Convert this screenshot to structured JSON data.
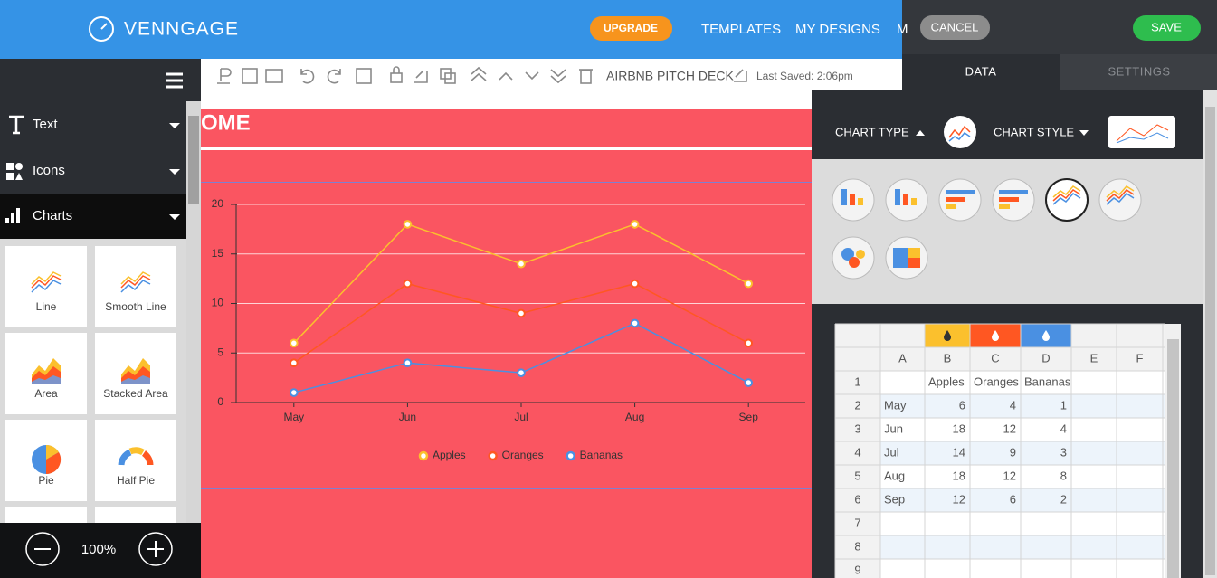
{
  "header": {
    "logo": "VENNGAGE",
    "upgrade": "UPGRADE",
    "nav": [
      "TEMPLATES",
      "MY DESIGNS",
      "M"
    ]
  },
  "panel_header": {
    "cancel": "CANCEL",
    "save": "SAVE",
    "tabs": [
      "DATA",
      "SETTINGS"
    ]
  },
  "sidebar": {
    "menu": [
      "Text",
      "Icons",
      "Charts"
    ],
    "chart_types": [
      "Line",
      "Smooth Line",
      "Area",
      "Stacked Area",
      "Pie",
      "Half Pie"
    ],
    "zoom": "100%"
  },
  "toolbar": {
    "document": "AIRBNB PITCH DECK",
    "last_saved": "Last Saved: 2:06pm"
  },
  "canvas": {
    "heading": "OME"
  },
  "chart_panel": {
    "chart_type": "CHART TYPE",
    "chart_style": "CHART STYLE"
  },
  "sheet": {
    "columns": [
      "A",
      "B",
      "C",
      "D",
      "E",
      "F"
    ],
    "rows": [
      1,
      2,
      3,
      4,
      5,
      6,
      7,
      8,
      9
    ]
  },
  "chart_data": {
    "type": "line",
    "categories": [
      "May",
      "Jun",
      "Jul",
      "Aug",
      "Sep"
    ],
    "series": [
      {
        "name": "Apples",
        "color": "#fbc02d",
        "values": [
          6,
          18,
          14,
          18,
          12
        ]
      },
      {
        "name": "Oranges",
        "color": "#ff5722",
        "values": [
          4,
          12,
          9,
          12,
          6
        ]
      },
      {
        "name": "Bananas",
        "color": "#4a90e2",
        "values": [
          1,
          4,
          3,
          8,
          2
        ]
      }
    ],
    "ylim": [
      0,
      20
    ],
    "yticks": [
      0,
      5,
      10,
      15,
      20
    ],
    "grid": true,
    "legend": "bottom"
  }
}
